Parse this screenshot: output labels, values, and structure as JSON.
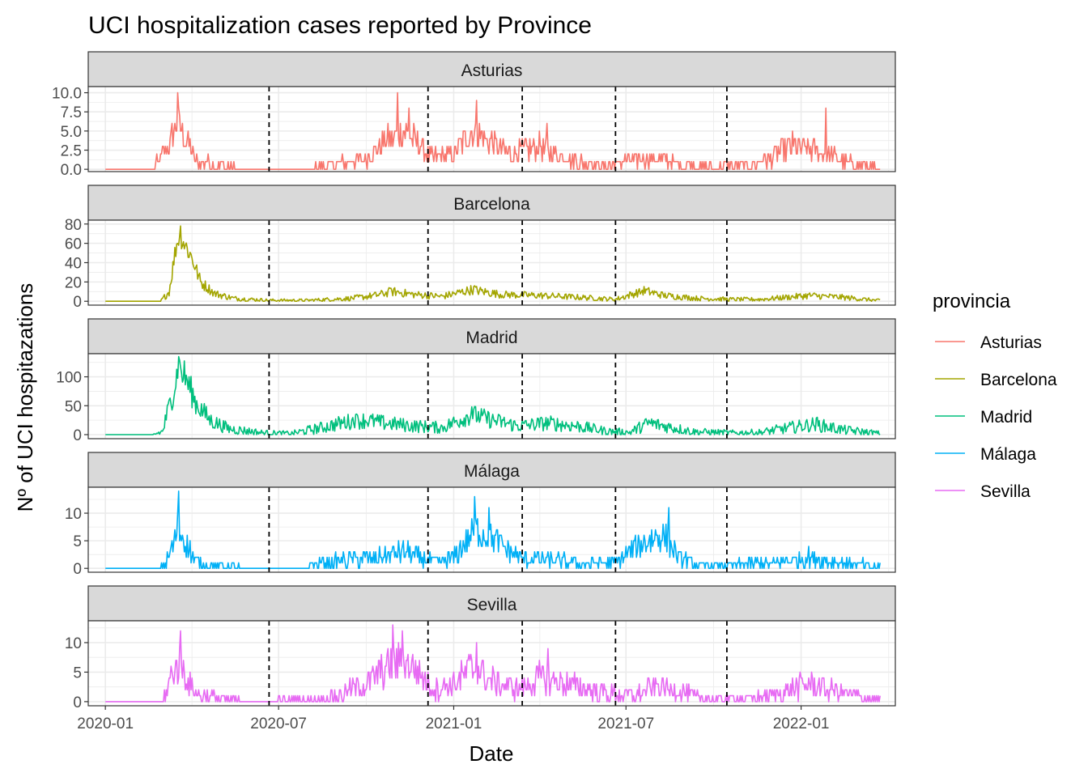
{
  "chart_data": {
    "type": "line",
    "title": "UCI hospitalization cases reported by Province",
    "xlabel": "Date",
    "ylabel": "Nº of UCI hospitazations",
    "x_range": [
      "2019-12-14",
      "2022-04-10"
    ],
    "x_ticks": [
      "2020-01",
      "2020-07",
      "2021-01",
      "2021-07",
      "2022-01"
    ],
    "vlines": [
      "2020-06-21",
      "2020-12-05",
      "2021-03-14",
      "2021-06-20",
      "2021-10-15"
    ],
    "legend": {
      "title": "provincia",
      "position": "right",
      "entries": [
        "Asturias",
        "Barcelona",
        "Madrid",
        "Málaga",
        "Sevilla"
      ]
    },
    "panels": [
      {
        "name": "Asturias",
        "color": "#F8766D",
        "ylim": [
          -0.3,
          10.8
        ],
        "yticks": [
          0,
          2.5,
          5,
          7.5,
          10
        ],
        "ytick_labels": [
          "0.0",
          "2.5",
          "5.0",
          "7.5",
          "10.0"
        ],
        "anchors": [
          [
            "2020-01-01",
            0
          ],
          [
            "2020-02-20",
            0
          ],
          [
            "2020-03-08",
            3
          ],
          [
            "2020-03-16",
            6
          ],
          [
            "2020-03-22",
            5
          ],
          [
            "2020-04-05",
            1
          ],
          [
            "2020-05-01",
            0.5
          ],
          [
            "2020-06-01",
            0
          ],
          [
            "2020-08-01",
            0
          ],
          [
            "2020-08-25",
            0.5
          ],
          [
            "2020-10-01",
            1.5
          ],
          [
            "2020-10-25",
            4
          ],
          [
            "2020-11-10",
            5
          ],
          [
            "2020-11-28",
            3
          ],
          [
            "2020-12-10",
            1.5
          ],
          [
            "2021-01-01",
            2
          ],
          [
            "2021-01-20",
            5
          ],
          [
            "2021-02-10",
            3.5
          ],
          [
            "2021-03-01",
            2
          ],
          [
            "2021-04-01",
            3
          ],
          [
            "2021-04-15",
            2
          ],
          [
            "2021-05-15",
            1
          ],
          [
            "2021-06-15",
            0.5
          ],
          [
            "2021-07-20",
            1.5
          ],
          [
            "2021-08-15",
            1
          ],
          [
            "2021-09-15",
            0.3
          ],
          [
            "2021-11-01",
            0.4
          ],
          [
            "2021-12-01",
            1.5
          ],
          [
            "2021-12-20",
            3
          ],
          [
            "2022-01-15",
            2.5
          ],
          [
            "2022-02-15",
            1
          ],
          [
            "2022-03-15",
            0.3
          ],
          [
            "2022-03-25",
            0
          ]
        ],
        "peaks": [
          [
            "2020-03-17",
            10
          ],
          [
            "2020-11-03",
            10
          ],
          [
            "2020-11-15",
            8
          ],
          [
            "2021-01-25",
            9
          ],
          [
            "2021-04-09",
            6
          ],
          [
            "2022-01-27",
            8
          ]
        ],
        "noise": 1.0,
        "discrete": true
      },
      {
        "name": "Barcelona",
        "color": "#A3A500",
        "ylim": [
          -4,
          84
        ],
        "yticks": [
          0,
          20,
          40,
          60,
          80
        ],
        "ytick_labels": [
          "0",
          "20",
          "40",
          "60",
          "80"
        ],
        "anchors": [
          [
            "2020-01-01",
            0
          ],
          [
            "2020-02-28",
            0
          ],
          [
            "2020-03-08",
            10
          ],
          [
            "2020-03-15",
            55
          ],
          [
            "2020-03-19",
            70
          ],
          [
            "2020-03-24",
            60
          ],
          [
            "2020-04-01",
            45
          ],
          [
            "2020-04-10",
            20
          ],
          [
            "2020-04-25",
            8
          ],
          [
            "2020-05-15",
            3
          ],
          [
            "2020-06-20",
            1
          ],
          [
            "2020-08-01",
            1
          ],
          [
            "2020-09-15",
            3
          ],
          [
            "2020-10-10",
            6
          ],
          [
            "2020-10-30",
            10
          ],
          [
            "2020-11-20",
            7
          ],
          [
            "2020-12-20",
            5
          ],
          [
            "2021-01-20",
            12
          ],
          [
            "2021-02-20",
            7
          ],
          [
            "2021-04-01",
            6
          ],
          [
            "2021-05-15",
            4
          ],
          [
            "2021-06-20",
            2
          ],
          [
            "2021-07-20",
            11
          ],
          [
            "2021-08-10",
            6
          ],
          [
            "2021-09-15",
            3
          ],
          [
            "2021-10-20",
            2
          ],
          [
            "2021-11-20",
            2
          ],
          [
            "2021-12-15",
            4
          ],
          [
            "2022-01-10",
            6
          ],
          [
            "2022-02-15",
            4
          ],
          [
            "2022-03-20",
            1
          ],
          [
            "2022-03-25",
            1
          ]
        ],
        "peaks": [
          [
            "2020-03-20",
            78
          ],
          [
            "2020-10-25",
            14
          ],
          [
            "2021-01-23",
            16
          ],
          [
            "2021-07-15",
            13
          ]
        ],
        "noise": 1.5,
        "discrete": false
      },
      {
        "name": "Madrid",
        "color": "#00BF7D",
        "ylim": [
          -7,
          140
        ],
        "yticks": [
          0,
          50,
          100
        ],
        "ytick_labels": [
          "0",
          "50",
          "100"
        ],
        "anchors": [
          [
            "2020-01-01",
            0
          ],
          [
            "2020-02-20",
            0
          ],
          [
            "2020-03-01",
            5
          ],
          [
            "2020-03-10",
            60
          ],
          [
            "2020-03-18",
            115
          ],
          [
            "2020-03-25",
            100
          ],
          [
            "2020-04-05",
            55
          ],
          [
            "2020-04-20",
            25
          ],
          [
            "2020-05-10",
            10
          ],
          [
            "2020-06-15",
            3
          ],
          [
            "2020-07-15",
            2
          ],
          [
            "2020-08-15",
            12
          ],
          [
            "2020-09-10",
            22
          ],
          [
            "2020-10-01",
            25
          ],
          [
            "2020-10-20",
            20
          ],
          [
            "2020-11-20",
            15
          ],
          [
            "2020-12-20",
            12
          ],
          [
            "2021-01-20",
            35
          ],
          [
            "2021-02-10",
            25
          ],
          [
            "2021-03-10",
            15
          ],
          [
            "2021-04-10",
            20
          ],
          [
            "2021-05-10",
            15
          ],
          [
            "2021-06-10",
            6
          ],
          [
            "2021-07-05",
            4
          ],
          [
            "2021-07-25",
            20
          ],
          [
            "2021-08-10",
            15
          ],
          [
            "2021-09-10",
            5
          ],
          [
            "2021-10-20",
            3
          ],
          [
            "2021-11-20",
            4
          ],
          [
            "2021-12-20",
            12
          ],
          [
            "2022-01-15",
            18
          ],
          [
            "2022-02-15",
            8
          ],
          [
            "2022-03-25",
            2
          ]
        ],
        "peaks": [
          [
            "2020-03-18",
            135
          ],
          [
            "2020-09-20",
            35
          ],
          [
            "2021-01-20",
            48
          ],
          [
            "2021-07-28",
            27
          ],
          [
            "2022-01-18",
            30
          ]
        ],
        "noise": 3.0,
        "discrete": false
      },
      {
        "name": "Málaga",
        "color": "#00B0F6",
        "ylim": [
          -0.7,
          14.7
        ],
        "yticks": [
          0,
          5,
          10
        ],
        "ytick_labels": [
          "0",
          "5",
          "10"
        ],
        "anchors": [
          [
            "2020-01-01",
            0
          ],
          [
            "2020-02-28",
            0
          ],
          [
            "2020-03-08",
            2
          ],
          [
            "2020-03-17",
            7
          ],
          [
            "2020-03-25",
            5
          ],
          [
            "2020-04-05",
            1
          ],
          [
            "2020-05-01",
            0.4
          ],
          [
            "2020-06-01",
            0
          ],
          [
            "2020-07-25",
            0
          ],
          [
            "2020-08-15",
            1
          ],
          [
            "2020-09-15",
            1.5
          ],
          [
            "2020-10-20",
            2
          ],
          [
            "2020-11-10",
            3
          ],
          [
            "2020-12-01",
            1.5
          ],
          [
            "2020-12-15",
            1
          ],
          [
            "2021-01-01",
            2
          ],
          [
            "2021-01-25",
            7
          ],
          [
            "2021-02-15",
            5
          ],
          [
            "2021-03-10",
            2
          ],
          [
            "2021-04-10",
            1.5
          ],
          [
            "2021-05-15",
            1
          ],
          [
            "2021-06-20",
            1
          ],
          [
            "2021-07-20",
            5
          ],
          [
            "2021-08-10",
            6
          ],
          [
            "2021-08-25",
            2
          ],
          [
            "2021-09-15",
            0.5
          ],
          [
            "2021-10-15",
            0.5
          ],
          [
            "2021-12-01",
            1
          ],
          [
            "2022-01-10",
            2
          ],
          [
            "2022-02-15",
            1
          ],
          [
            "2022-03-25",
            0.3
          ]
        ],
        "peaks": [
          [
            "2020-03-18",
            14
          ],
          [
            "2021-01-23",
            13
          ],
          [
            "2021-02-07",
            11
          ],
          [
            "2021-08-15",
            11
          ]
        ],
        "noise": 1.2,
        "discrete": true
      },
      {
        "name": "Sevilla",
        "color": "#E76BF3",
        "ylim": [
          -0.7,
          13.7
        ],
        "yticks": [
          0,
          5,
          10
        ],
        "ytick_labels": [
          "0",
          "5",
          "10"
        ],
        "anchors": [
          [
            "2020-01-01",
            0
          ],
          [
            "2020-03-01",
            0
          ],
          [
            "2020-03-12",
            5
          ],
          [
            "2020-03-20",
            7
          ],
          [
            "2020-03-28",
            3
          ],
          [
            "2020-04-10",
            1
          ],
          [
            "2020-05-10",
            0.3
          ],
          [
            "2020-06-01",
            0
          ],
          [
            "2020-08-01",
            0.3
          ],
          [
            "2020-09-01",
            1
          ],
          [
            "2020-10-01",
            3
          ],
          [
            "2020-10-25",
            6
          ],
          [
            "2020-11-10",
            7
          ],
          [
            "2020-11-25",
            5
          ],
          [
            "2020-12-10",
            2
          ],
          [
            "2021-01-01",
            3
          ],
          [
            "2021-01-20",
            6
          ],
          [
            "2021-02-10",
            3.5
          ],
          [
            "2021-03-10",
            2
          ],
          [
            "2021-04-01",
            4
          ],
          [
            "2021-05-01",
            3
          ],
          [
            "2021-06-10",
            1.5
          ],
          [
            "2021-07-10",
            1
          ],
          [
            "2021-08-01",
            2.5
          ],
          [
            "2021-08-20",
            2
          ],
          [
            "2021-09-20",
            0.5
          ],
          [
            "2021-11-01",
            0.3
          ],
          [
            "2021-12-01",
            1
          ],
          [
            "2022-01-10",
            3
          ],
          [
            "2022-02-10",
            1.5
          ],
          [
            "2022-03-25",
            0.3
          ]
        ],
        "peaks": [
          [
            "2020-03-20",
            12
          ],
          [
            "2020-10-29",
            13
          ],
          [
            "2020-11-08",
            12
          ],
          [
            "2021-01-25",
            10
          ],
          [
            "2021-04-10",
            9
          ]
        ],
        "noise": 1.3,
        "discrete": true
      }
    ]
  }
}
